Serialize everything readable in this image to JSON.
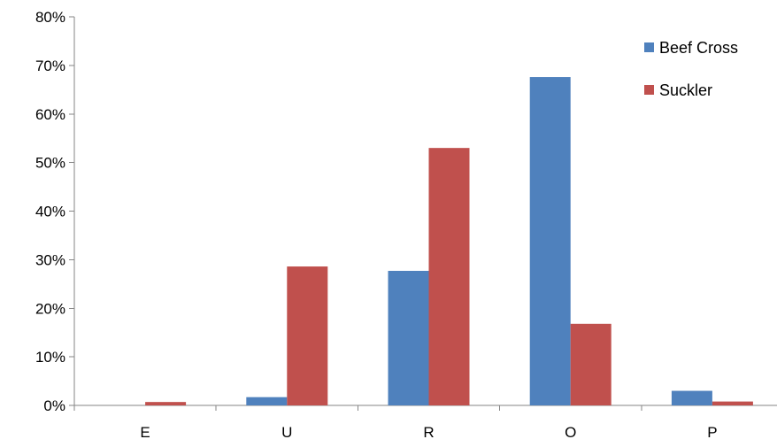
{
  "chart_data": {
    "type": "bar",
    "title": "",
    "xlabel": "",
    "ylabel": "",
    "categories": [
      "E",
      "U",
      "R",
      "O",
      "P"
    ],
    "series": [
      {
        "name": "Beef Cross",
        "color": "#4F81BD",
        "values": [
          0.0,
          0.017,
          0.277,
          0.676,
          0.03
        ]
      },
      {
        "name": "Suckler",
        "color": "#C0504D",
        "values": [
          0.007,
          0.286,
          0.53,
          0.168,
          0.008
        ]
      }
    ],
    "ylim": [
      0,
      0.8
    ],
    "yticks": [
      0,
      0.1,
      0.2,
      0.3,
      0.4,
      0.5,
      0.6,
      0.7,
      0.8
    ],
    "ytick_labels": [
      "0%",
      "10%",
      "20%",
      "30%",
      "40%",
      "50%",
      "60%",
      "70%",
      "80%"
    ],
    "grid": false,
    "legend_position": "top-right"
  }
}
